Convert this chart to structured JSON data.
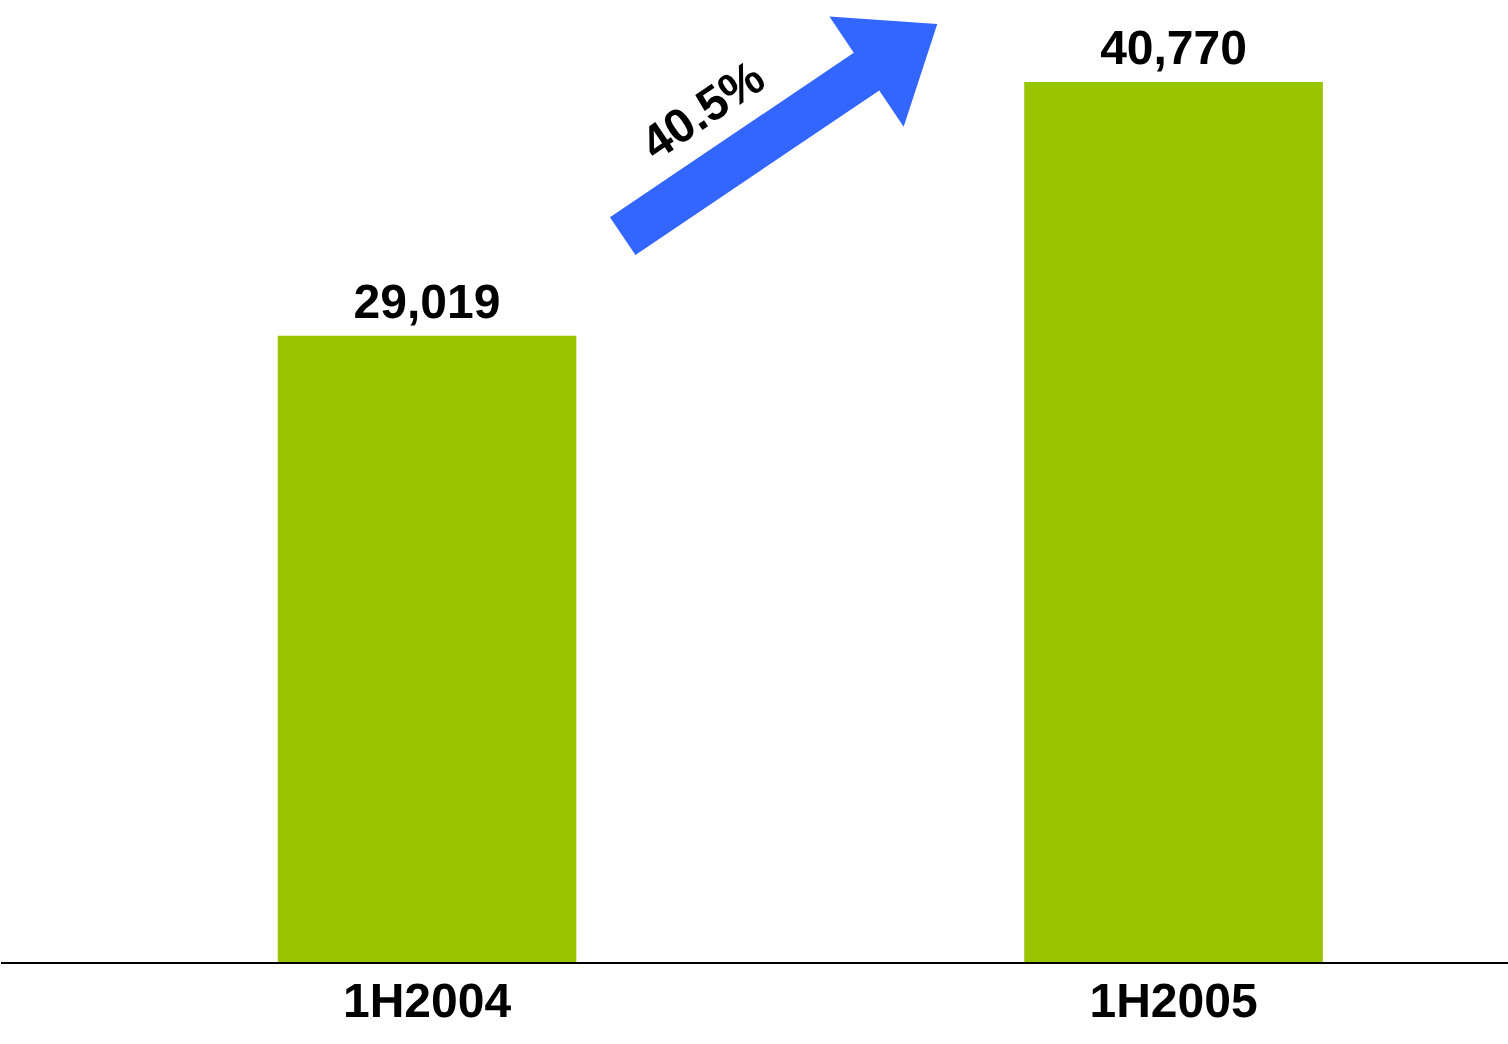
{
  "chart_data": {
    "type": "bar",
    "categories": [
      "1H2004",
      "1H2005"
    ],
    "values": [
      29019,
      40770
    ],
    "color": "#99c400",
    "value_labels": [
      "29,019",
      "40,770"
    ],
    "annotations": [
      "40.5%"
    ],
    "grid": false
  }
}
